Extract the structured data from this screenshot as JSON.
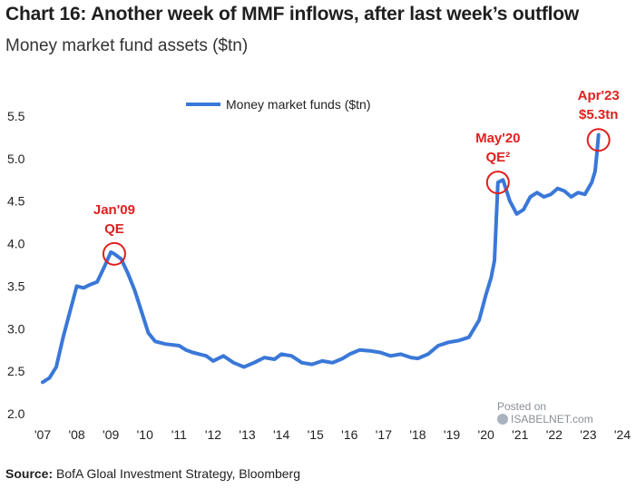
{
  "title": "Chart 16: Another week of MMF inflows, after last week’s outflow",
  "subtitle": "Money market fund assets ($tn)",
  "source": {
    "label": "Source:",
    "text": "BofA Gloal Investment Strategy, Bloomberg"
  },
  "watermark": {
    "line1": "Posted on",
    "line2": "ISABELNET.com"
  },
  "colors": {
    "series": "#3a78d8",
    "annotation": "#e02020"
  },
  "chart_data": {
    "type": "line",
    "title": "",
    "ylabel": "",
    "xlabel": "",
    "ylim": [
      2.0,
      5.5
    ],
    "xlim": [
      2007,
      2024
    ],
    "yticks": [
      "2.0",
      "2.5",
      "3.0",
      "3.5",
      "4.0",
      "4.5",
      "5.0",
      "5.5"
    ],
    "xticks": [
      "'07",
      "'08",
      "'09",
      "'10",
      "'11",
      "'12",
      "'13",
      "'14",
      "'15",
      "'16",
      "'17",
      "'18",
      "'19",
      "'20",
      "'21",
      "'22",
      "'23",
      "'24"
    ],
    "grid": false,
    "legend_position": "top-center",
    "series": [
      {
        "name": "Money market funds ($tn)",
        "x": [
          2007.0,
          2007.2,
          2007.4,
          2007.6,
          2007.8,
          2008.0,
          2008.2,
          2008.4,
          2008.6,
          2008.8,
          2009.0,
          2009.1,
          2009.3,
          2009.5,
          2009.7,
          2009.9,
          2010.1,
          2010.3,
          2010.6,
          2011.0,
          2011.2,
          2011.4,
          2011.6,
          2011.8,
          2012.0,
          2012.3,
          2012.6,
          2012.9,
          2013.2,
          2013.5,
          2013.8,
          2014.0,
          2014.3,
          2014.6,
          2014.9,
          2015.2,
          2015.5,
          2015.8,
          2016.0,
          2016.3,
          2016.6,
          2016.9,
          2017.2,
          2017.5,
          2017.8,
          2018.0,
          2018.3,
          2018.6,
          2018.9,
          2019.2,
          2019.5,
          2019.8,
          2020.0,
          2020.15,
          2020.25,
          2020.35,
          2020.5,
          2020.7,
          2020.9,
          2021.1,
          2021.3,
          2021.5,
          2021.7,
          2021.9,
          2022.1,
          2022.3,
          2022.5,
          2022.7,
          2022.9,
          2023.0,
          2023.1,
          2023.2,
          2023.25,
          2023.3
        ],
        "values": [
          2.37,
          2.42,
          2.55,
          2.9,
          3.2,
          3.5,
          3.48,
          3.52,
          3.55,
          3.72,
          3.9,
          3.88,
          3.82,
          3.65,
          3.45,
          3.2,
          2.95,
          2.85,
          2.82,
          2.8,
          2.75,
          2.72,
          2.7,
          2.68,
          2.62,
          2.68,
          2.6,
          2.55,
          2.6,
          2.66,
          2.64,
          2.7,
          2.68,
          2.6,
          2.58,
          2.62,
          2.6,
          2.65,
          2.7,
          2.75,
          2.74,
          2.72,
          2.68,
          2.7,
          2.66,
          2.65,
          2.7,
          2.8,
          2.84,
          2.86,
          2.9,
          3.1,
          3.4,
          3.6,
          3.8,
          4.72,
          4.75,
          4.5,
          4.35,
          4.4,
          4.55,
          4.6,
          4.55,
          4.58,
          4.65,
          4.62,
          4.55,
          4.6,
          4.58,
          4.65,
          4.72,
          4.85,
          5.05,
          5.28
        ]
      }
    ],
    "annotations": [
      {
        "label1": "Jan'09",
        "label2": "QE",
        "x": 2009.1,
        "y": 3.88
      },
      {
        "label1": "May'20",
        "label2": "QE²",
        "x": 2020.35,
        "y": 4.72
      },
      {
        "label1": "Apr'23",
        "label2": "$5.3tn",
        "x": 2023.3,
        "y": 5.22
      }
    ]
  }
}
